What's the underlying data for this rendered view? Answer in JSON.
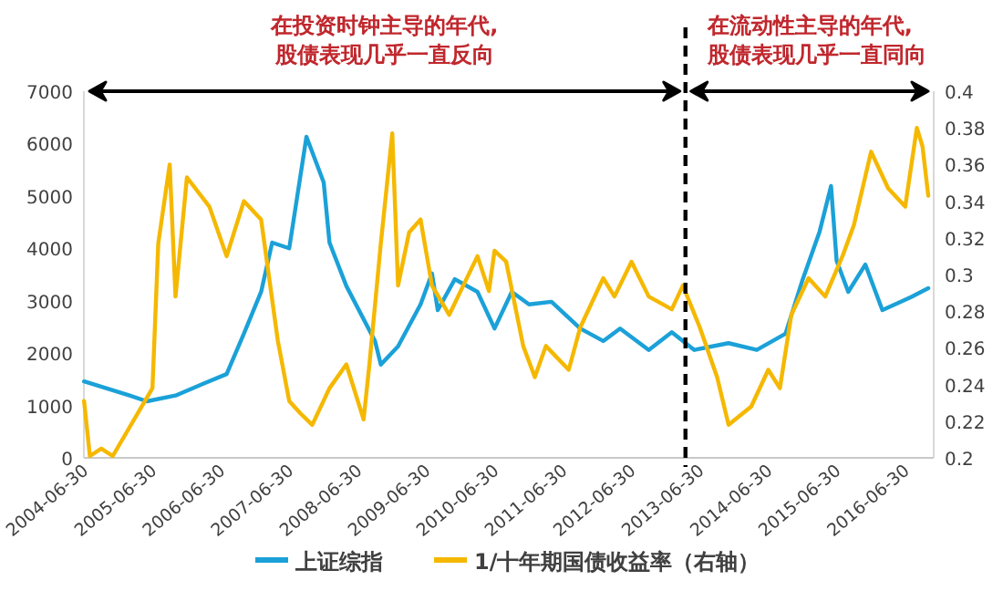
{
  "chart_data": {
    "type": "line",
    "annotations": [
      "在投资时钟主导的年代,\n股债表现几乎一直反向",
      "在流动性主导的年代,\n股债表现几乎一直同向"
    ],
    "xlim": [
      "2004-06-30",
      "2016-11-30"
    ],
    "xticks": [
      "2004-06-30",
      "2005-06-30",
      "2006-06-30",
      "2007-06-30",
      "2008-06-30",
      "2009-06-30",
      "2010-06-30",
      "2011-06-30",
      "2012-06-30",
      "2013-06-30",
      "2014-06-30",
      "2015-06-30",
      "2016-06-30"
    ],
    "ylim": [
      0,
      7000
    ],
    "yticks": [
      0,
      1000,
      2000,
      3000,
      4000,
      5000,
      6000,
      7000
    ],
    "y2lim": [
      0.2,
      0.4
    ],
    "y2ticks": [
      0.2,
      0.22,
      0.24,
      0.26,
      0.28,
      0.3,
      0.32,
      0.34,
      0.36,
      0.38,
      0.4
    ],
    "ref_lines": [
      {
        "axis": "x",
        "value": "2013-04-15",
        "label": null,
        "color": "#000000",
        "line_style": "dashed"
      }
    ],
    "legend": "bottom",
    "line_style": "solid",
    "marker": "none",
    "series": [
      {
        "name": "上证综指",
        "color": "#1ba1d8",
        "x": [
          "2004-07",
          "2005-03",
          "2005-06",
          "2005-11",
          "2006-04",
          "2006-08",
          "2006-11",
          "2007-02",
          "2007-04",
          "2007-07",
          "2007-10",
          "2008-01",
          "2008-02",
          "2008-05",
          "2008-10",
          "2008-11",
          "2009-02",
          "2009-06",
          "2009-08",
          "2009-09",
          "2009-12",
          "2010-04",
          "2010-07",
          "2010-10",
          "2011-01",
          "2011-05",
          "2011-10",
          "2012-02",
          "2012-05",
          "2012-10",
          "2013-02",
          "2013-06",
          "2013-12",
          "2014-05",
          "2014-10",
          "2015-01",
          "2015-04",
          "2015-06",
          "2015-07",
          "2015-09",
          "2015-12",
          "2016-03",
          "2016-08",
          "2016-11"
        ],
        "values": [
          1460,
          1190,
          1080,
          1190,
          1420,
          1600,
          2370,
          3170,
          4110,
          4000,
          6130,
          5260,
          4110,
          3280,
          2230,
          1780,
          2130,
          2930,
          3520,
          2820,
          3410,
          3170,
          2470,
          3170,
          2930,
          2980,
          2470,
          2230,
          2470,
          2060,
          2400,
          2060,
          2190,
          2060,
          2370,
          3410,
          4320,
          5190,
          3760,
          3170,
          3690,
          2820,
          3070,
          3240
        ]
      },
      {
        "name": "1/十年期国债收益率（右轴）",
        "color": "#f5b800",
        "axis": "y2",
        "x": [
          "2004-07",
          "2004-08",
          "2004-10",
          "2004-12",
          "2005-07",
          "2005-08",
          "2005-10",
          "2005-11",
          "2006-01",
          "2006-05",
          "2006-08",
          "2006-11",
          "2007-02",
          "2007-05",
          "2007-07",
          "2007-09",
          "2007-11",
          "2008-02",
          "2008-05",
          "2008-08",
          "2008-09",
          "2008-11",
          "2009-01",
          "2009-02",
          "2009-04",
          "2009-06",
          "2009-08",
          "2009-11",
          "2010-01",
          "2010-04",
          "2010-06",
          "2010-07",
          "2010-09",
          "2010-12",
          "2011-02",
          "2011-04",
          "2011-08",
          "2011-10",
          "2012-02",
          "2012-04",
          "2012-07",
          "2012-10",
          "2013-02",
          "2013-04",
          "2013-07",
          "2013-10",
          "2013-12",
          "2014-04",
          "2014-07",
          "2014-09",
          "2014-11",
          "2015-02",
          "2015-05",
          "2015-08",
          "2015-10",
          "2016-01",
          "2016-04",
          "2016-07",
          "2016-09",
          "2016-10",
          "2016-11"
        ],
        "values": [
          0.231,
          0.201,
          0.205,
          0.201,
          0.238,
          0.317,
          0.36,
          0.288,
          0.353,
          0.337,
          0.31,
          0.34,
          0.33,
          0.264,
          0.231,
          0.224,
          0.218,
          0.238,
          0.251,
          0.221,
          0.251,
          0.317,
          0.377,
          0.294,
          0.323,
          0.33,
          0.294,
          0.278,
          0.291,
          0.31,
          0.291,
          0.313,
          0.307,
          0.261,
          0.244,
          0.261,
          0.248,
          0.271,
          0.298,
          0.288,
          0.307,
          0.288,
          0.281,
          0.294,
          0.271,
          0.244,
          0.218,
          0.228,
          0.248,
          0.238,
          0.278,
          0.298,
          0.288,
          0.31,
          0.327,
          0.367,
          0.347,
          0.337,
          0.38,
          0.37,
          0.343
        ]
      }
    ]
  }
}
